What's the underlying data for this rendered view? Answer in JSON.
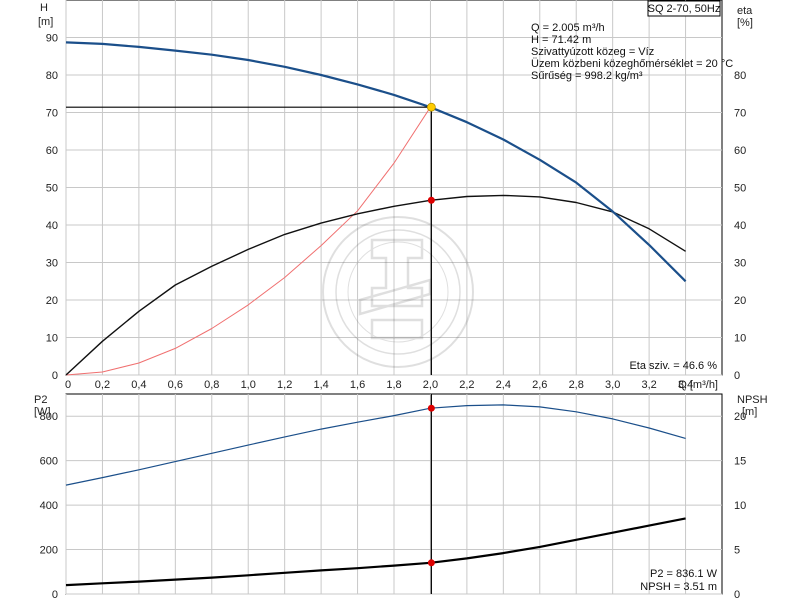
{
  "model_label": "SQ 2-70, 50Hz",
  "info": {
    "lines": [
      "Q = 2.005 m³/h",
      "H = 71.42 m",
      "Szivattyúzott közeg = Víz",
      "Üzem közbeni közeghőmérséklet = 20 °C",
      "Sűrűség = 998.2 kg/m³"
    ]
  },
  "colors": {
    "head": "#1b4f8a",
    "eta": "#111111",
    "red_curve": "#f07070",
    "p2": "#1b4f8a",
    "npsh": "#000000",
    "duty_point": "#ffcc00",
    "marker": "#dd0000",
    "grid": "#c8c8c8"
  },
  "chart_data": [
    {
      "type": "line",
      "xlabel": "Q [m³/h]",
      "ylabel_left": [
        "H",
        "[m]"
      ],
      "ylabel_right": [
        "eta",
        "[%]"
      ],
      "xlim": [
        0,
        3.6
      ],
      "ylim": [
        0,
        100
      ],
      "x_ticks": [
        0,
        0.2,
        0.4,
        0.6,
        0.8,
        1.0,
        1.2,
        1.4,
        1.6,
        1.8,
        2.0,
        2.2,
        2.4,
        2.6,
        2.8,
        3.0,
        3.2,
        3.4
      ],
      "x_tick_labels": [
        "0",
        "0,2",
        "0,4",
        "0,6",
        "0,8",
        "1,0",
        "1,2",
        "1,4",
        "1,6",
        "1,8",
        "2,0",
        "2,2",
        "2,4",
        "2,6",
        "2,8",
        "3,0",
        "3,2",
        "3,4"
      ],
      "y_ticks_left": [
        0,
        10,
        20,
        30,
        40,
        50,
        60,
        70,
        80,
        90
      ],
      "y_ticks_right": [
        0,
        10,
        20,
        30,
        40,
        50,
        60,
        70,
        80
      ],
      "grid": true,
      "series": [
        {
          "id": "head",
          "x": [
            0,
            0.2,
            0.4,
            0.6,
            0.8,
            1.0,
            1.2,
            1.4,
            1.6,
            1.8,
            2.0,
            2.2,
            2.4,
            2.6,
            2.8,
            3.0,
            3.2,
            3.4
          ],
          "y": [
            88.7,
            88.3,
            87.5,
            86.5,
            85.4,
            84.0,
            82.2,
            80.0,
            77.5,
            74.7,
            71.4,
            67.4,
            62.8,
            57.4,
            51.3,
            43.6,
            34.7,
            25.0
          ]
        },
        {
          "id": "eta",
          "x": [
            0,
            0.2,
            0.4,
            0.6,
            0.8,
            1.0,
            1.2,
            1.4,
            1.6,
            1.8,
            2.0,
            2.2,
            2.4,
            2.6,
            2.8,
            3.0,
            3.2,
            3.4
          ],
          "y": [
            0,
            9,
            17,
            24,
            29,
            33.5,
            37.5,
            40.5,
            43,
            45,
            46.6,
            47.6,
            47.9,
            47.5,
            46,
            43.5,
            39,
            33
          ]
        },
        {
          "id": "red_curve",
          "x": [
            0,
            0.2,
            0.4,
            0.6,
            0.8,
            1.0,
            1.2,
            1.4,
            1.6,
            1.8,
            2.0
          ],
          "y": [
            0,
            0.8,
            3.2,
            7.1,
            12.4,
            18.7,
            26.0,
            34.5,
            43.8,
            56.5,
            71.4
          ]
        }
      ],
      "duty_point": {
        "x": 2.005,
        "y": 71.42
      },
      "eta_point": {
        "x": 2.005,
        "y": 46.6
      },
      "annotation": "Eta sziv. = 46.6 %"
    },
    {
      "type": "line",
      "ylabel_left": [
        "P2",
        "[W]"
      ],
      "ylabel_right": [
        "NPSH",
        "[m]"
      ],
      "xlim": [
        0,
        3.6
      ],
      "ylim_left": [
        0,
        900
      ],
      "ylim_right": [
        0,
        22.5
      ],
      "y_ticks_left": [
        0,
        200,
        400,
        600,
        800
      ],
      "y_ticks_right": [
        0,
        5,
        10,
        15,
        20
      ],
      "grid": true,
      "series": [
        {
          "id": "p2",
          "x": [
            0,
            0.2,
            0.4,
            0.6,
            0.8,
            1.0,
            1.2,
            1.4,
            1.6,
            1.8,
            2.0,
            2.2,
            2.4,
            2.6,
            2.8,
            3.0,
            3.2,
            3.4
          ],
          "y": [
            490,
            524,
            559,
            596,
            633,
            670,
            707,
            742,
            773,
            803,
            836,
            848,
            851,
            842,
            820,
            788,
            747,
            700
          ]
        },
        {
          "id": "npsh",
          "x": [
            0,
            0.2,
            0.4,
            0.6,
            0.8,
            1.0,
            1.2,
            1.4,
            1.6,
            1.8,
            2.0,
            2.2,
            2.4,
            2.6,
            2.8,
            3.0,
            3.2,
            3.4
          ],
          "y": [
            1.0,
            1.2,
            1.4,
            1.62,
            1.85,
            2.1,
            2.38,
            2.65,
            2.9,
            3.2,
            3.51,
            4.0,
            4.6,
            5.3,
            6.1,
            6.9,
            7.7,
            8.5
          ]
        }
      ],
      "p2_point": {
        "x": 2.005,
        "y": 836.1
      },
      "npsh_point": {
        "x": 2.005,
        "y": 3.51
      },
      "annotations": [
        "P2 = 836.1 W",
        "NPSH = 3.51 m"
      ]
    }
  ]
}
